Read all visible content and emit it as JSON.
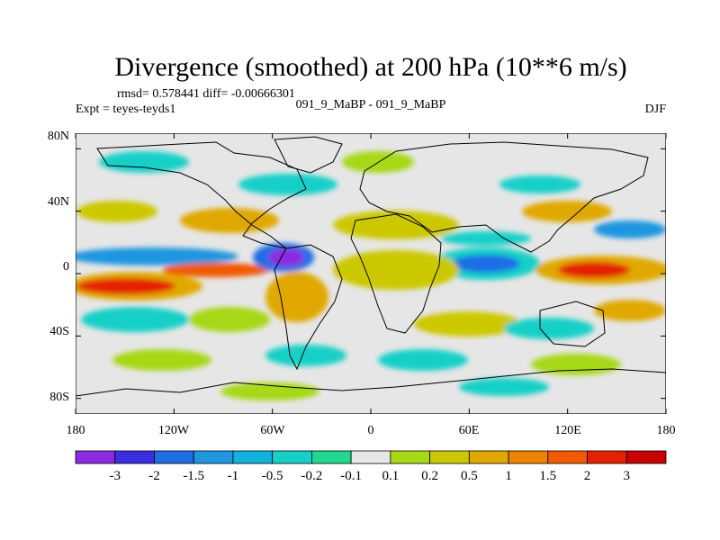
{
  "chart_data": {
    "type": "heatmap",
    "title": "Divergence (smoothed) at 200 hPa (10**6 m/s)",
    "stats": "rmsd= 0.578441 diff= -0.00666301",
    "left_label": "Expt = teyes-teyds1",
    "center_label": "091_9_MaBP - 091_9_MaBP",
    "right_label": "DJF",
    "x_ticks": [
      "180",
      "120W",
      "60W",
      "0",
      "60E",
      "120E",
      "180"
    ],
    "y_ticks": [
      "80N",
      "40N",
      "0",
      "40S",
      "80S"
    ],
    "xlim": [
      -180,
      180
    ],
    "ylim": [
      -90,
      90
    ],
    "colorbar": {
      "labels": [
        "-3",
        "-2",
        "-1.5",
        "-1",
        "-0.5",
        "-0.2",
        "-0.1",
        "0.1",
        "0.2",
        "0.5",
        "1",
        "1.5",
        "2",
        "3"
      ],
      "colors": [
        "#8A2BE2",
        "#3A2EE0",
        "#1E6EE6",
        "#1E96E0",
        "#12B2DC",
        "#16D0C8",
        "#20D890",
        "#E6E6E6",
        "#A6D818",
        "#CCC800",
        "#E0A800",
        "#EC8400",
        "#F05A00",
        "#E42000",
        "#C80000"
      ]
    }
  }
}
